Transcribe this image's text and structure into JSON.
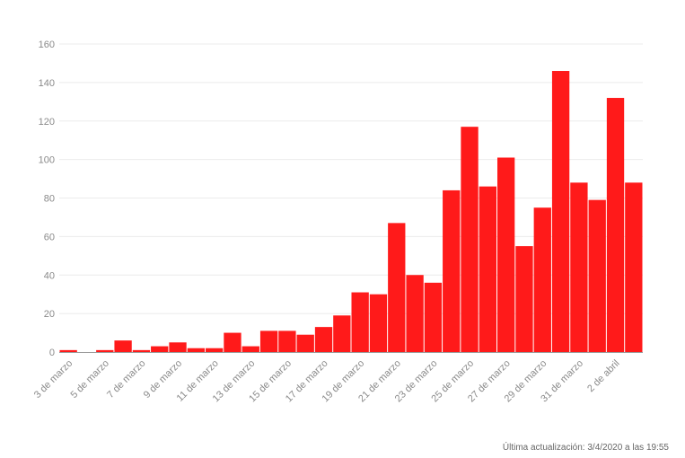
{
  "chart_data": {
    "type": "bar",
    "categories": [
      "3 de marzo",
      "4 de marzo",
      "5 de marzo",
      "6 de marzo",
      "7 de marzo",
      "8 de marzo",
      "9 de marzo",
      "10 de marzo",
      "11 de marzo",
      "12 de marzo",
      "13 de marzo",
      "14 de marzo",
      "15 de marzo",
      "16 de marzo",
      "17 de marzo",
      "18 de marzo",
      "19 de marzo",
      "20 de marzo",
      "21 de marzo",
      "22 de marzo",
      "23 de marzo",
      "24 de marzo",
      "25 de marzo",
      "26 de marzo",
      "27 de marzo",
      "28 de marzo",
      "29 de marzo",
      "30 de marzo",
      "31 de marzo",
      "1 de abril",
      "2 de abril",
      "3 de abril"
    ],
    "values": [
      1,
      0,
      1,
      6,
      1,
      3,
      5,
      2,
      2,
      10,
      3,
      11,
      11,
      9,
      13,
      19,
      31,
      30,
      67,
      40,
      36,
      84,
      117,
      86,
      101,
      55,
      75,
      146,
      88,
      79,
      132,
      88
    ],
    "x_tick_labels": [
      "3 de marzo",
      "5 de marzo",
      "7 de marzo",
      "9 de marzo",
      "11 de marzo",
      "13 de marzo",
      "15 de marzo",
      "17 de marzo",
      "19 de marzo",
      "21 de marzo",
      "23 de marzo",
      "25 de marzo",
      "27 de marzo",
      "29 de marzo",
      "31 de marzo",
      "2 de abril"
    ],
    "y_ticks": [
      0,
      20,
      40,
      60,
      80,
      100,
      120,
      140,
      160
    ],
    "ylim": [
      0,
      160
    ],
    "title": "",
    "xlabel": "",
    "ylabel": "",
    "grid": true,
    "bar_color": "#ff1a1a"
  },
  "footer": {
    "last_update": "Última actualización: 3/4/2020 a las 19:55"
  }
}
